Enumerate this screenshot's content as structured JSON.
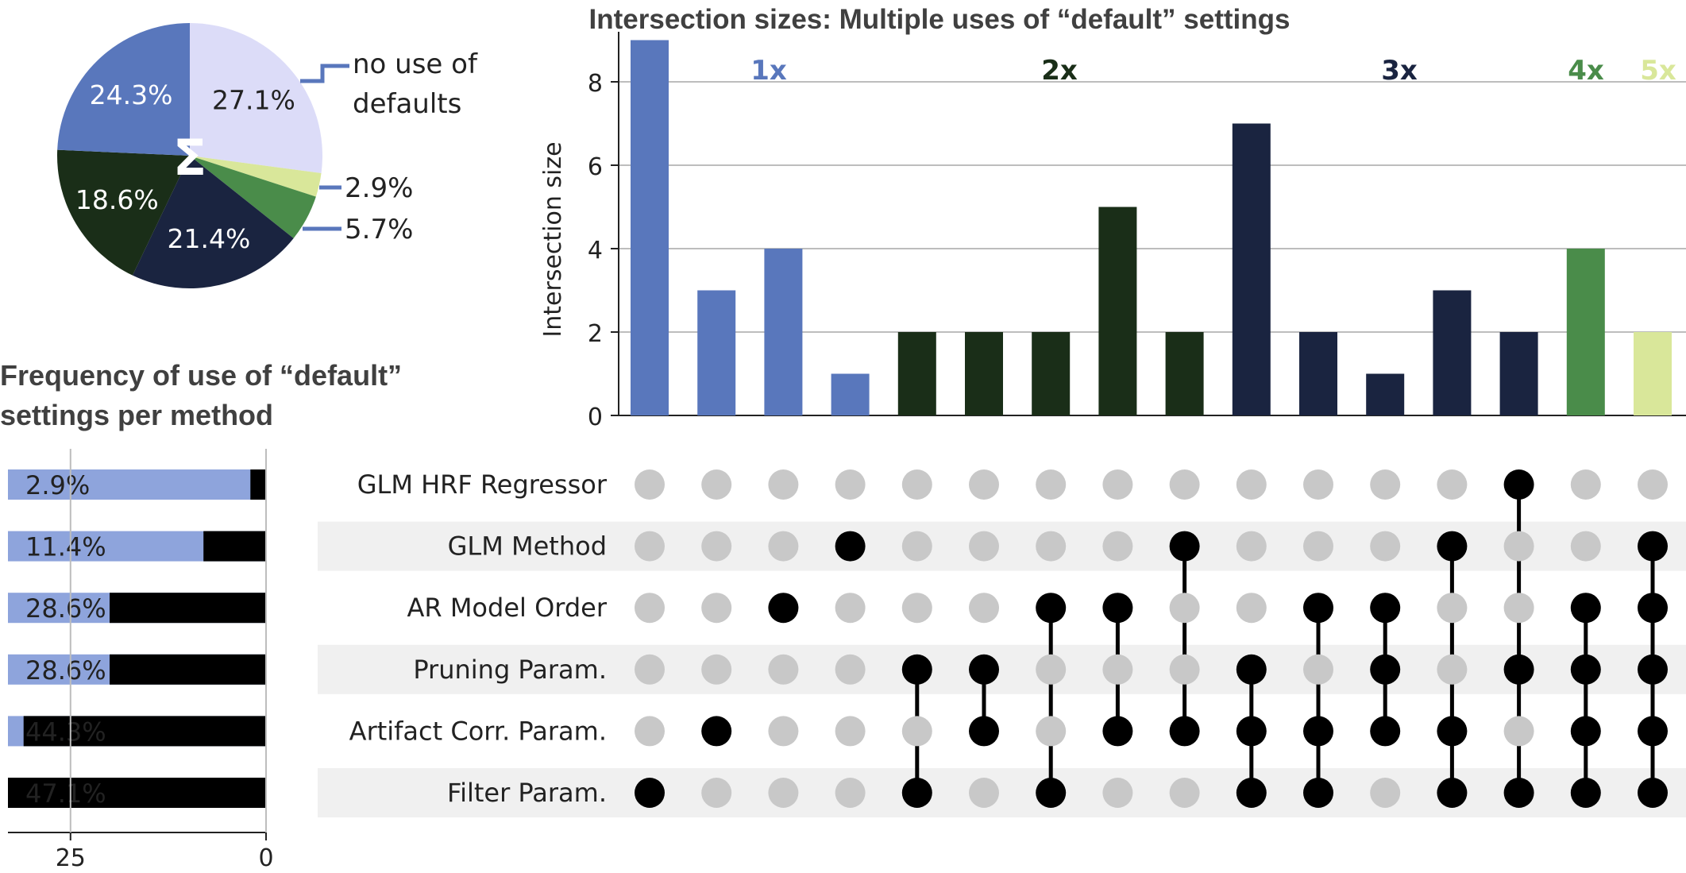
{
  "titles": {
    "intersection": "Intersection sizes: Multiple uses of “default” settings",
    "frequency": "Frequency of use of “default” settings per method"
  },
  "colors": {
    "one": "#5977bc",
    "two": "#1a2e18",
    "three": "#1a2440",
    "four": "#4a8c4a",
    "five": "#d9e79a",
    "none": "#dcdcf8",
    "freq_bar": "#8ea4dc",
    "dot_active": "#000000",
    "dot_inactive": "#c8c8c8"
  },
  "chart_data": [
    {
      "type": "pie",
      "center_label": "Σ",
      "slices": [
        {
          "label": "no use of defaults",
          "value": 27.1,
          "color": "#dcdcf8"
        },
        {
          "label": "5x",
          "value": 2.9,
          "color": "#d9e79a"
        },
        {
          "label": "4x",
          "value": 5.7,
          "color": "#4a8c4a"
        },
        {
          "label": "3x",
          "value": 21.4,
          "color": "#1a2440"
        },
        {
          "label": "2x",
          "value": 18.6,
          "color": "#1a2e18"
        },
        {
          "label": "1x",
          "value": 24.3,
          "color": "#5977bc"
        }
      ],
      "slice_texts": [
        "27.1%",
        "2.9%",
        "5.7%",
        "21.4%",
        "18.6%",
        "24.3%"
      ]
    },
    {
      "type": "bar",
      "title": "Intersection sizes: Multiple uses of “default” settings",
      "ylabel": "Intersection size",
      "ylim": [
        0,
        9.2
      ],
      "yticks": [
        0,
        2,
        4,
        6,
        8
      ],
      "grid": true,
      "group_labels": [
        {
          "label": "1x",
          "group": 1
        },
        {
          "label": "2x",
          "group": 2
        },
        {
          "label": "3x",
          "group": 3
        },
        {
          "label": "4x",
          "group": 4
        },
        {
          "label": "5x",
          "group": 5
        }
      ],
      "sets": [
        "GLM HRF Regressor",
        "GLM Method",
        "AR Model Order",
        "Pruning Param.",
        "Artifact Corr. Param.",
        "Filter Param."
      ],
      "bars": [
        {
          "value": 9,
          "group": 1,
          "members": [
            "Filter Param."
          ]
        },
        {
          "value": 3,
          "group": 1,
          "members": [
            "Artifact Corr. Param."
          ]
        },
        {
          "value": 4,
          "group": 1,
          "members": [
            "AR Model Order"
          ]
        },
        {
          "value": 1,
          "group": 1,
          "members": [
            "GLM Method"
          ]
        },
        {
          "value": 2,
          "group": 2,
          "members": [
            "Pruning Param.",
            "Filter Param."
          ]
        },
        {
          "value": 2,
          "group": 2,
          "members": [
            "Pruning Param.",
            "Artifact Corr. Param."
          ]
        },
        {
          "value": 2,
          "group": 2,
          "members": [
            "AR Model Order",
            "Filter Param."
          ]
        },
        {
          "value": 5,
          "group": 2,
          "members": [
            "AR Model Order",
            "Artifact Corr. Param."
          ]
        },
        {
          "value": 2,
          "group": 2,
          "members": [
            "GLM Method",
            "Artifact Corr. Param."
          ]
        },
        {
          "value": 7,
          "group": 3,
          "members": [
            "Pruning Param.",
            "Artifact Corr. Param.",
            "Filter Param."
          ]
        },
        {
          "value": 2,
          "group": 3,
          "members": [
            "AR Model Order",
            "Artifact Corr. Param.",
            "Filter Param."
          ]
        },
        {
          "value": 1,
          "group": 3,
          "members": [
            "AR Model Order",
            "Pruning Param.",
            "Artifact Corr. Param."
          ]
        },
        {
          "value": 3,
          "group": 3,
          "members": [
            "GLM Method",
            "Artifact Corr. Param.",
            "Filter Param."
          ]
        },
        {
          "value": 2,
          "group": 3,
          "members": [
            "GLM HRF Regressor",
            "Pruning Param.",
            "Filter Param."
          ]
        },
        {
          "value": 4,
          "group": 4,
          "members": [
            "AR Model Order",
            "Pruning Param.",
            "Artifact Corr. Param.",
            "Filter Param."
          ]
        },
        {
          "value": 2,
          "group": 5,
          "members": [
            "GLM Method",
            "AR Model Order",
            "Pruning Param.",
            "Artifact Corr. Param.",
            "Filter Param."
          ]
        }
      ]
    },
    {
      "type": "bar",
      "orientation": "horizontal",
      "title": "Frequency of use of “default” settings per method",
      "categories": [
        "GLM HRF Regressor",
        "GLM Method",
        "AR Model Order",
        "Pruning Param.",
        "Artifact Corr. Param.",
        "Filter Param."
      ],
      "values": [
        2,
        8,
        20,
        20,
        31,
        33
      ],
      "value_texts": [
        "2.9%",
        "11.4%",
        "28.6%",
        "28.6%",
        "44.3%",
        "47.1%"
      ],
      "xlim": [
        0,
        33
      ],
      "xticks": [
        25,
        0
      ],
      "axis_reversed": true
    }
  ]
}
